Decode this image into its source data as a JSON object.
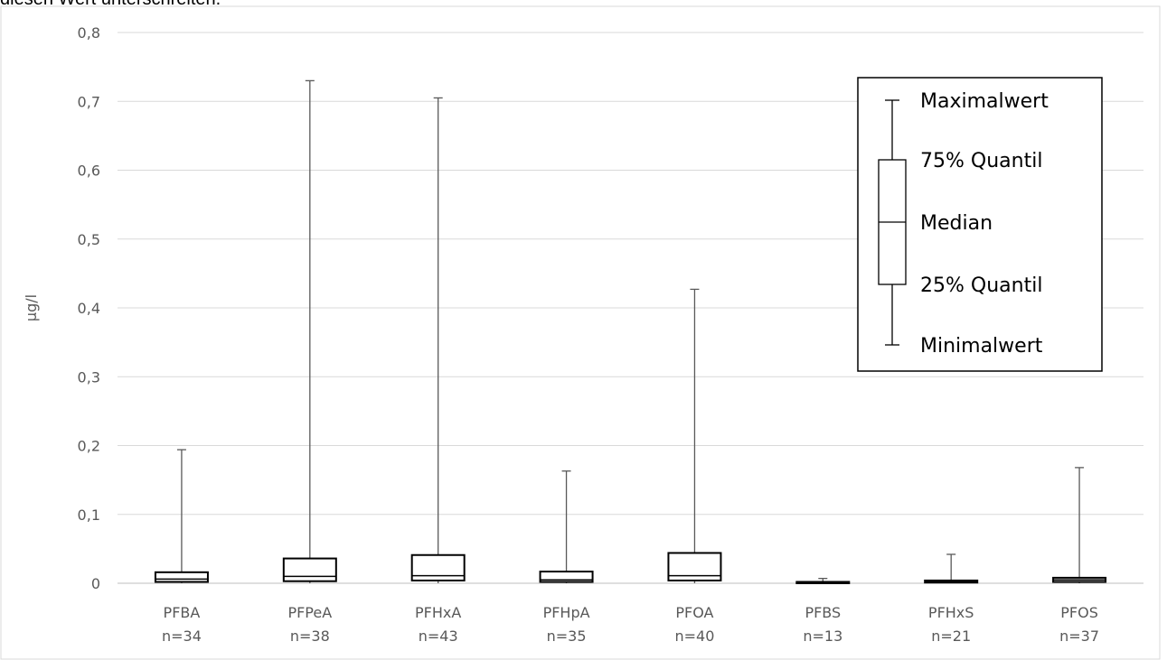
{
  "page": {
    "cut_off_text": "diesen Wert unterschreiten."
  },
  "chart_data": {
    "type": "boxplot",
    "ylabel": "µg/l",
    "ylim": [
      0,
      0.8
    ],
    "yticks": [
      "0",
      "0,1",
      "0,2",
      "0,3",
      "0,4",
      "0,5",
      "0,6",
      "0,7",
      "0,8"
    ],
    "grid": true,
    "categories": [
      {
        "name": "PFBA",
        "n": "n=34"
      },
      {
        "name": "PFPeA",
        "n": "n=38"
      },
      {
        "name": "PFHxA",
        "n": "n=43"
      },
      {
        "name": "PFHpA",
        "n": "n=35"
      },
      {
        "name": "PFOA",
        "n": "n=40"
      },
      {
        "name": "PFBS",
        "n": "n=13"
      },
      {
        "name": "PFHxS",
        "n": "n=21"
      },
      {
        "name": "PFOS",
        "n": "n=37"
      }
    ],
    "series": [
      {
        "min": 0,
        "q1": 0.002,
        "median": 0.006,
        "q3": 0.016,
        "max": 0.194
      },
      {
        "min": 0,
        "q1": 0.003,
        "median": 0.01,
        "q3": 0.036,
        "max": 0.73
      },
      {
        "min": 0,
        "q1": 0.004,
        "median": 0.011,
        "q3": 0.041,
        "max": 0.705
      },
      {
        "min": 0,
        "q1": 0.002,
        "median": 0.005,
        "q3": 0.017,
        "max": 0.163
      },
      {
        "min": 0,
        "q1": 0.004,
        "median": 0.011,
        "q3": 0.044,
        "max": 0.427
      },
      {
        "min": 0,
        "q1": 0.0005,
        "median": 0.001,
        "q3": 0.002,
        "max": 0.007
      },
      {
        "min": 0,
        "q1": 0.001,
        "median": 0.002,
        "q3": 0.004,
        "max": 0.042
      },
      {
        "min": 0,
        "q1": 0.002,
        "median": 0.005,
        "q3": 0.008,
        "max": 0.168
      }
    ],
    "legend": {
      "placement": "top-right",
      "entries": [
        "Maximalwert",
        "75% Quantil",
        "Median",
        "25% Quantil",
        "Minimalwert"
      ]
    }
  }
}
